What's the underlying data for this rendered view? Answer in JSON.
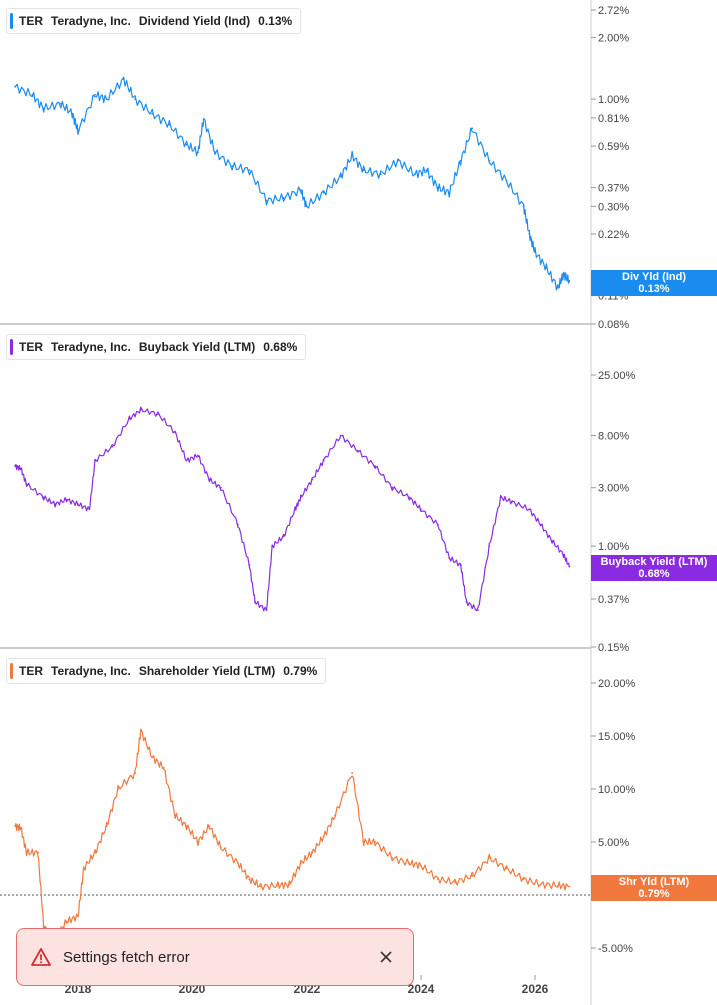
{
  "colors": {
    "div": "#1a8cf0",
    "buyback": "#8a2be2",
    "shareholder": "#f0783c",
    "toast_bg": "#fde2e2",
    "toast_border": "#e86a6a"
  },
  "panels": [
    {
      "ticker": "TER",
      "company": "Teradyne, Inc.",
      "metric": "Dividend Yield (Ind)",
      "value": "0.13%",
      "badge_line1": "Div Yld (Ind)",
      "badge_line2": "0.13%"
    },
    {
      "ticker": "TER",
      "company": "Teradyne, Inc.",
      "metric": "Buyback Yield (LTM)",
      "value": "0.68%",
      "badge_line1": "Buyback Yield (LTM)",
      "badge_line2": "0.68%"
    },
    {
      "ticker": "TER",
      "company": "Teradyne, Inc.",
      "metric": "Shareholder Yield (LTM)",
      "value": "0.79%",
      "badge_line1": "Shr Yld (LTM)",
      "badge_line2": "0.79%"
    }
  ],
  "toast": {
    "message": "Settings fetch error",
    "icon": "warning-icon",
    "close_icon": "close-icon"
  },
  "chart_data": [
    {
      "type": "line",
      "title": "TER Teradyne, Inc. Dividend Yield (Ind) 0.13%",
      "scale": "log",
      "y_ticks": [
        "2.72%",
        "2.00%",
        "1.00%",
        "0.81%",
        "0.59%",
        "0.37%",
        "0.30%",
        "0.22%",
        "0.11%",
        "0.08%"
      ],
      "y_tick_values": [
        2.72,
        2.0,
        1.0,
        0.81,
        0.59,
        0.37,
        0.3,
        0.22,
        0.11,
        0.08
      ],
      "x_ticks": [
        "2018",
        "2020",
        "2022",
        "2024",
        "2026"
      ],
      "series": [
        {
          "name": "Div Yld (Ind)",
          "x": [
            2016.9,
            2017.2,
            2017.4,
            2017.7,
            2017.9,
            2018.0,
            2018.3,
            2018.5,
            2018.8,
            2019.0,
            2019.3,
            2019.6,
            2019.9,
            2020.1,
            2020.2,
            2020.4,
            2020.7,
            2021.0,
            2021.3,
            2021.6,
            2021.9,
            2022.0,
            2022.3,
            2022.6,
            2022.8,
            2023.0,
            2023.3,
            2023.6,
            2023.9,
            2024.1,
            2024.3,
            2024.5,
            2024.7,
            2024.9,
            2025.2,
            2025.5,
            2025.8,
            2025.9,
            2026.0,
            2026.2,
            2026.4,
            2026.5,
            2026.6
          ],
          "values": [
            1.15,
            1.05,
            0.9,
            0.95,
            0.85,
            0.7,
            1.05,
            1.0,
            1.25,
            1.0,
            0.85,
            0.75,
            0.6,
            0.55,
            0.8,
            0.55,
            0.47,
            0.45,
            0.32,
            0.33,
            0.36,
            0.3,
            0.35,
            0.42,
            0.53,
            0.45,
            0.43,
            0.5,
            0.43,
            0.45,
            0.37,
            0.35,
            0.5,
            0.72,
            0.5,
            0.4,
            0.3,
            0.22,
            0.18,
            0.15,
            0.12,
            0.14,
            0.13
          ]
        }
      ]
    },
    {
      "type": "line",
      "title": "TER Teradyne, Inc. Buyback Yield (LTM) 0.68%",
      "scale": "log",
      "y_ticks": [
        "25.00%",
        "8.00%",
        "3.00%",
        "1.00%",
        "0.37%",
        "0.15%"
      ],
      "y_tick_values": [
        25.0,
        8.0,
        3.0,
        1.0,
        0.37,
        0.15
      ],
      "x_ticks": [
        "2018",
        "2020",
        "2022",
        "2024",
        "2026"
      ],
      "series": [
        {
          "name": "Buyback Yield (LTM)",
          "x": [
            2016.9,
            2017.0,
            2017.1,
            2017.4,
            2017.6,
            2017.8,
            2018.0,
            2018.2,
            2018.3,
            2018.6,
            2018.9,
            2019.1,
            2019.4,
            2019.7,
            2019.9,
            2020.1,
            2020.3,
            2020.5,
            2020.8,
            2021.0,
            2021.1,
            2021.3,
            2021.4,
            2021.6,
            2021.8,
            2021.9,
            2022.1,
            2022.3,
            2022.6,
            2022.9,
            2023.2,
            2023.5,
            2023.8,
            2024.0,
            2024.3,
            2024.5,
            2024.7,
            2024.8,
            2025.0,
            2025.2,
            2025.4,
            2025.6,
            2025.9,
            2026.1,
            2026.3,
            2026.5,
            2026.6
          ],
          "values": [
            4.5,
            4.3,
            3.2,
            2.5,
            2.2,
            2.4,
            2.2,
            2.0,
            5.0,
            6.5,
            11.0,
            13.0,
            12.0,
            8.5,
            5.0,
            5.5,
            3.5,
            3.0,
            1.5,
            0.7,
            0.35,
            0.3,
            1.0,
            1.2,
            2.0,
            2.5,
            3.5,
            5.0,
            8.0,
            6.0,
            4.5,
            3.0,
            2.5,
            2.0,
            1.5,
            0.8,
            0.7,
            0.35,
            0.3,
            1.0,
            2.5,
            2.3,
            2.0,
            1.5,
            1.1,
            0.85,
            0.68
          ]
        }
      ]
    },
    {
      "type": "line",
      "title": "TER Teradyne, Inc. Shareholder Yield (LTM) 0.79%",
      "scale": "linear",
      "y_ticks": [
        "20.00%",
        "15.00%",
        "10.00%",
        "5.00%",
        "0.00%",
        "-5.00%"
      ],
      "y_tick_values": [
        20.0,
        15.0,
        10.0,
        5.0,
        0.0,
        -5.0
      ],
      "x_ticks": [
        "2018",
        "2020",
        "2022",
        "2024",
        "2026"
      ],
      "series": [
        {
          "name": "Shr Yld (LTM)",
          "x": [
            2016.9,
            2017.0,
            2017.1,
            2017.3,
            2017.4,
            2017.6,
            2017.8,
            2018.0,
            2018.1,
            2018.3,
            2018.5,
            2018.7,
            2019.0,
            2019.1,
            2019.3,
            2019.5,
            2019.7,
            2019.9,
            2020.1,
            2020.3,
            2020.5,
            2020.8,
            2021.0,
            2021.2,
            2021.5,
            2021.7,
            2021.9,
            2022.1,
            2022.3,
            2022.5,
            2022.8,
            2023.0,
            2023.2,
            2023.5,
            2023.8,
            2024.0,
            2024.3,
            2024.6,
            2024.9,
            2025.2,
            2025.5,
            2025.8,
            2026.1,
            2026.4,
            2026.6
          ],
          "values": [
            6.5,
            6.3,
            4.0,
            4.0,
            -3.0,
            -4.0,
            -2.5,
            -2.0,
            2.5,
            4.0,
            6.5,
            10.0,
            11.5,
            15.5,
            13.0,
            12.0,
            7.5,
            6.5,
            5.0,
            6.5,
            4.5,
            3.0,
            1.5,
            0.8,
            0.9,
            1.0,
            3.0,
            4.0,
            5.5,
            7.5,
            11.5,
            5.0,
            5.0,
            3.5,
            3.0,
            2.8,
            1.5,
            1.2,
            1.8,
            3.5,
            2.5,
            1.5,
            1.0,
            0.9,
            0.79
          ]
        }
      ]
    }
  ]
}
